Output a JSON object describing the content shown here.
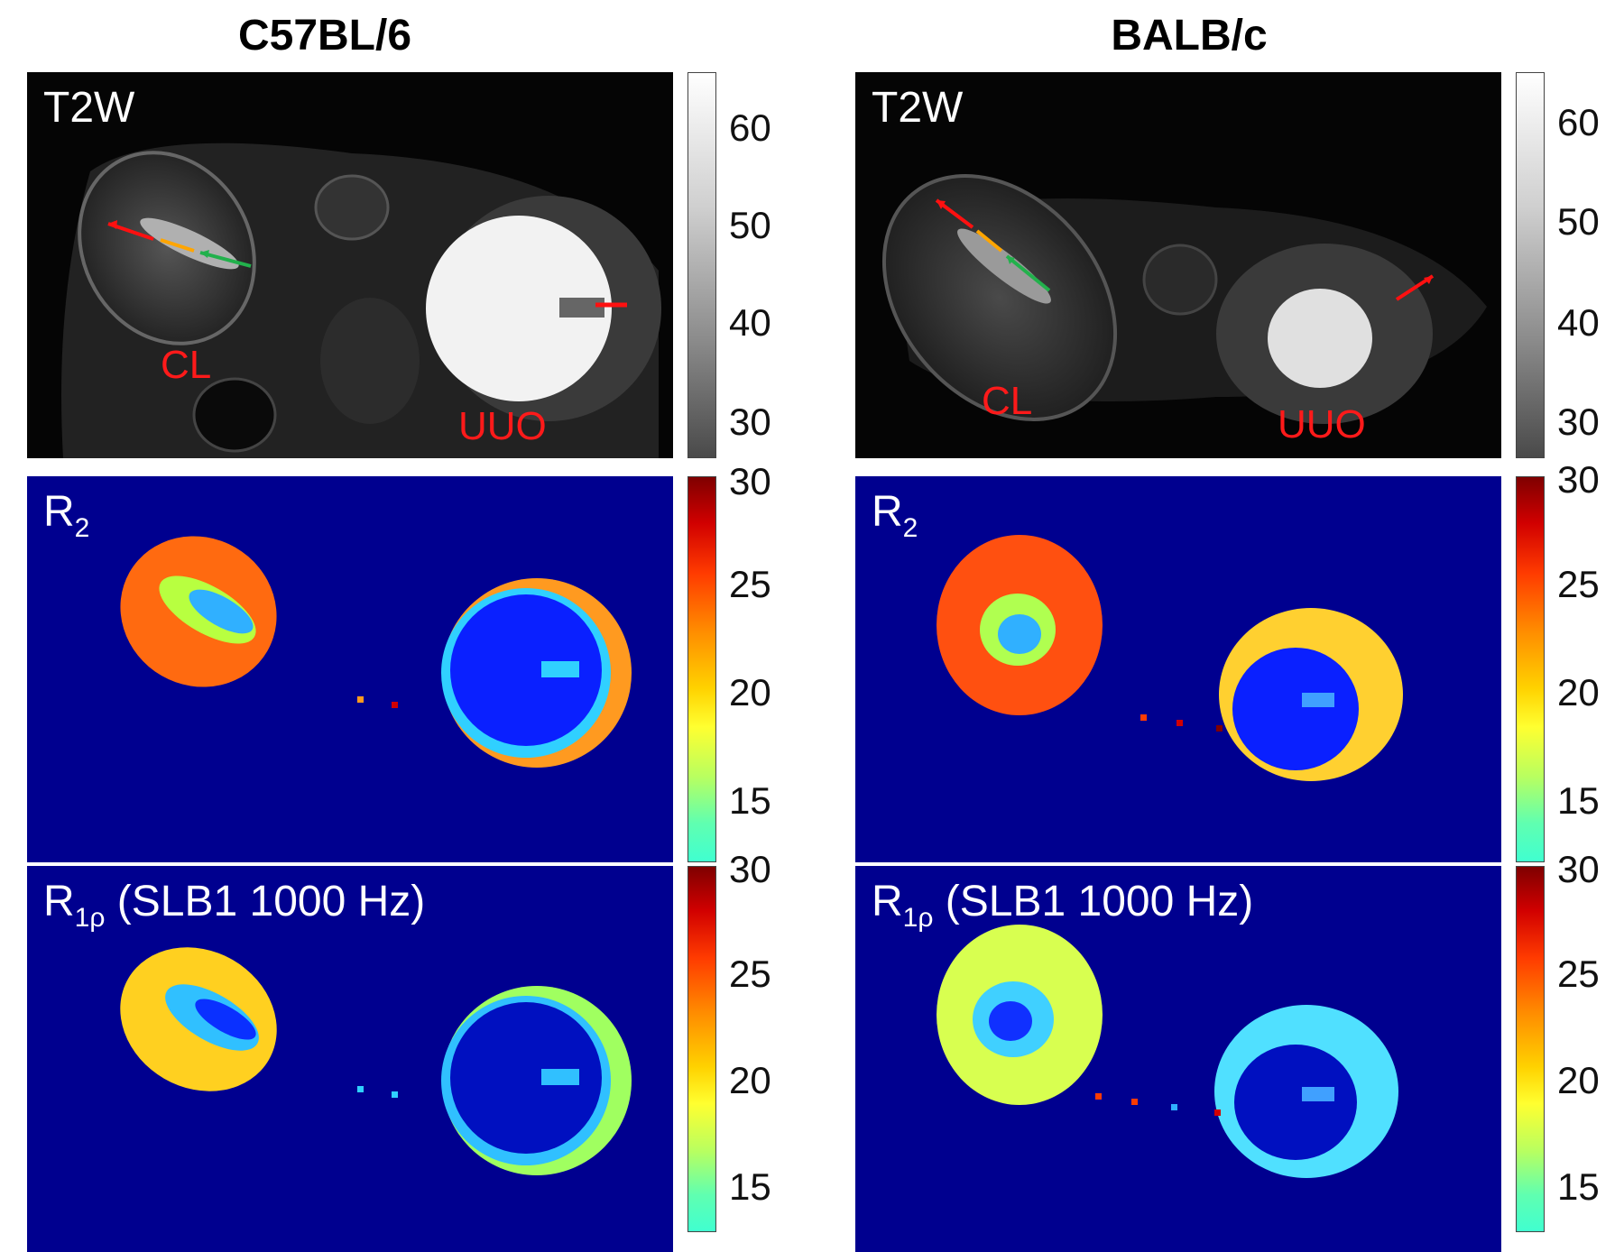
{
  "columns": [
    {
      "title": "C57BL/6",
      "panels": [
        {
          "type": "t2w",
          "label": "T2W",
          "organ_labels": {
            "left": "CL",
            "right": "UUO"
          },
          "colorbar": {
            "scale": "gray",
            "ticks": [
              "60",
              "50",
              "40",
              "30"
            ]
          }
        },
        {
          "type": "map",
          "label_main": "R",
          "label_sub": "2",
          "label_rest": "",
          "colorbar": {
            "scale": "jet",
            "ticks": [
              "30",
              "25",
              "20",
              "15"
            ]
          }
        },
        {
          "type": "map",
          "label_main": "R",
          "label_sub": "1ρ",
          "label_rest": " (SLB1 1000 Hz)",
          "colorbar": {
            "scale": "jet",
            "ticks": [
              "30",
              "25",
              "20",
              "15"
            ]
          }
        }
      ]
    },
    {
      "title": "BALB/c",
      "panels": [
        {
          "type": "t2w",
          "label": "T2W",
          "organ_labels": {
            "left": "CL",
            "right": "UUO"
          },
          "colorbar": {
            "scale": "gray",
            "ticks": [
              "60",
              "50",
              "40",
              "30"
            ]
          }
        },
        {
          "type": "map",
          "label_main": "R",
          "label_sub": "2",
          "label_rest": "",
          "colorbar": {
            "scale": "jet",
            "ticks": [
              "30",
              "25",
              "20",
              "15"
            ]
          }
        },
        {
          "type": "map",
          "label_main": "R",
          "label_sub": "1ρ",
          "label_rest": " (SLB1 1000 Hz)",
          "colorbar": {
            "scale": "jet",
            "ticks": [
              "30",
              "25",
              "20",
              "15"
            ]
          }
        }
      ]
    }
  ],
  "colors": {
    "map_background": "#00008f",
    "label_red": "#ff1a1a",
    "arrow_red": "#ff1010",
    "arrow_orange": "#ffa500",
    "arrow_green": "#22b14c"
  }
}
